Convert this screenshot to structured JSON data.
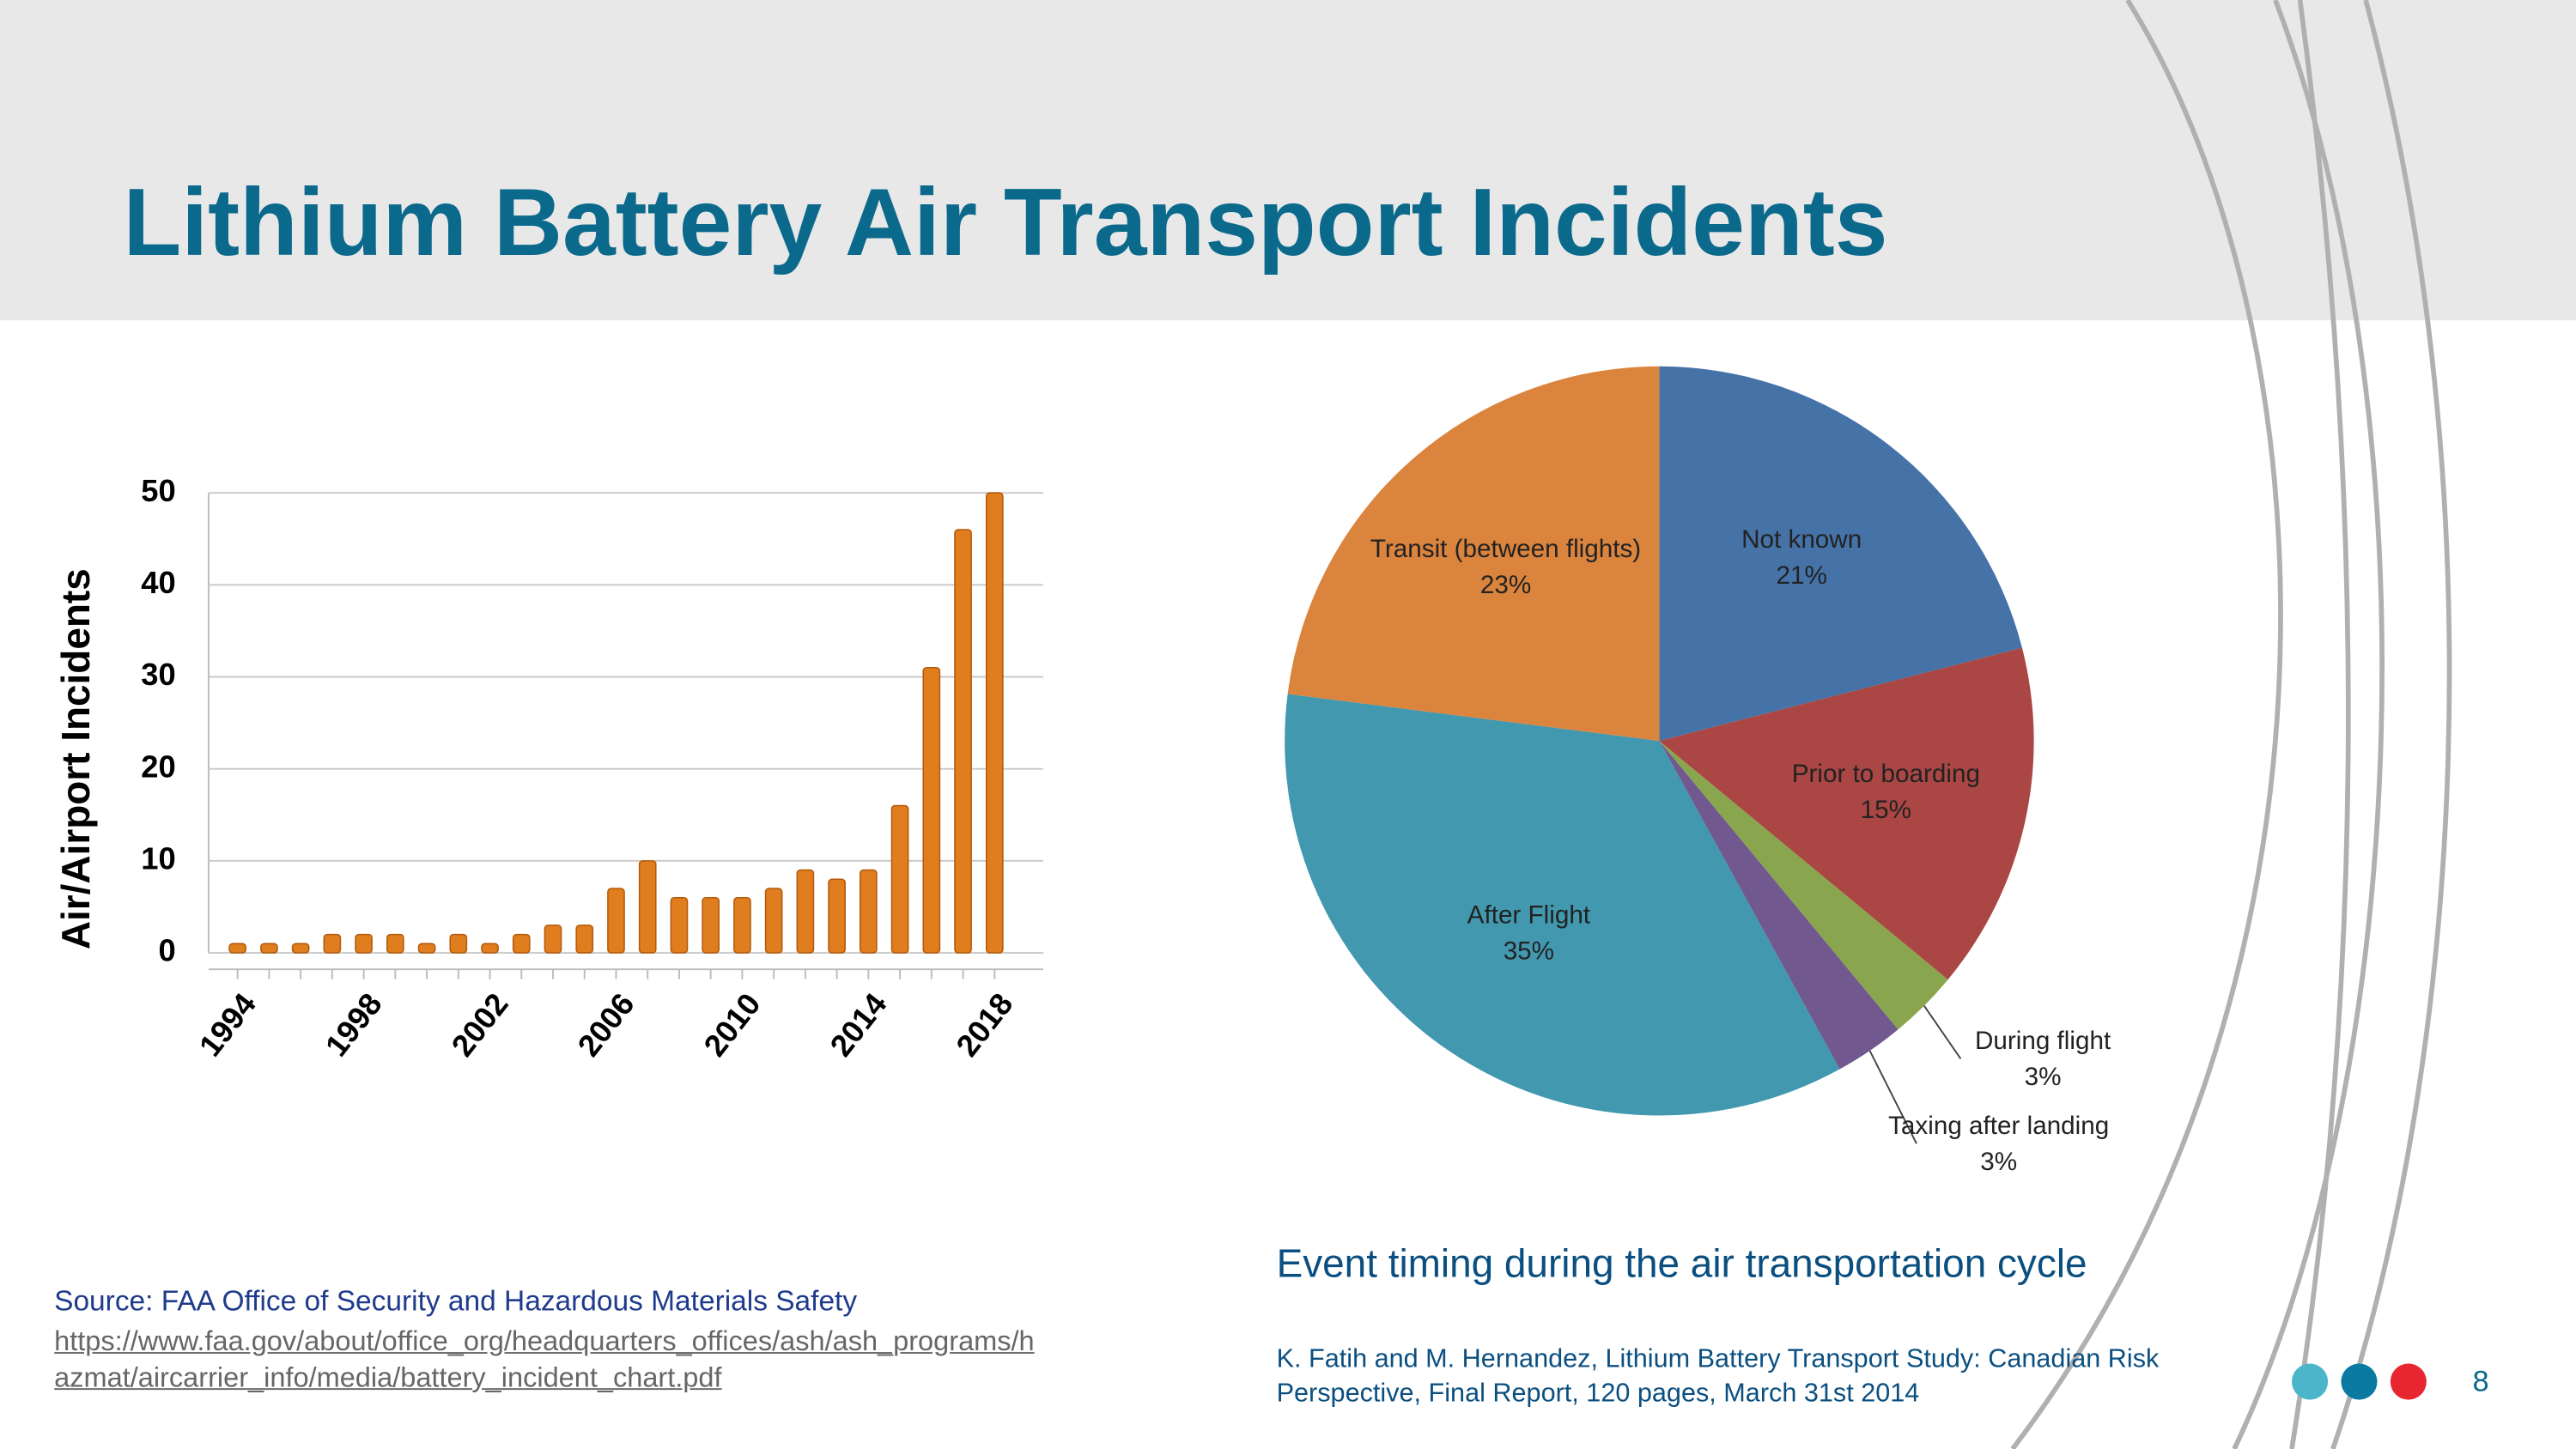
{
  "slide": {
    "title": "Lithium Battery Air Transport Incidents",
    "caption": "Event timing during the air transportation cycle",
    "source": "Source: FAA Office of Security and Hazardous Materials Safety",
    "source_url": "https://www.faa.gov/about/office_org/headquarters_offices/ash/ash_programs/hazmat/aircarrier_info/media/battery_incident_chart.pdf",
    "citation": "K. Fatih and M. Hernandez, Lithium Battery Transport Study: Canadian Risk Perspective, Final Report, 120 pages, March 31st 2014",
    "page": 8
  },
  "chart_data": [
    {
      "type": "bar",
      "ylabel": "Air/Airport Incidents",
      "categories": [
        "1994",
        null,
        null,
        null,
        "1998",
        null,
        null,
        null,
        "2002",
        null,
        null,
        null,
        "2006",
        null,
        null,
        null,
        "2010",
        null,
        null,
        null,
        "2014",
        null,
        null,
        null,
        "2018"
      ],
      "values": [
        1,
        1,
        1,
        2,
        2,
        2,
        1,
        2,
        1,
        2,
        3,
        3,
        7,
        10,
        6,
        6,
        6,
        7,
        9,
        8,
        9,
        16,
        31,
        46,
        50
      ],
      "color": "#e07d1f",
      "ylim": [
        0,
        50
      ],
      "yticks": [
        0,
        10,
        20,
        30,
        40,
        50
      ],
      "grid": true
    },
    {
      "type": "pie",
      "categories": [
        "Not known",
        "Prior to boarding",
        "During flight",
        "Taxing after landing",
        "After Flight",
        "Transit (between flights)"
      ],
      "values": [
        21,
        15,
        3,
        3,
        35,
        23
      ],
      "value_labels": [
        "21%",
        "15%",
        "3%",
        "3%",
        "35%",
        "23%"
      ],
      "colors": [
        "#4572a7",
        "#aa4643",
        "#89a54e",
        "#71588f",
        "#4198af",
        "#db843d"
      ]
    }
  ]
}
